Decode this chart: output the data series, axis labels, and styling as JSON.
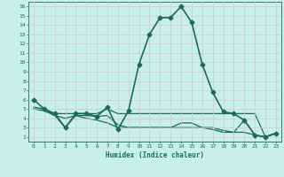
{
  "xlabel": "Humidex (Indice chaleur)",
  "bg_color": "#c8f0e8",
  "grid_color": "#d4c8c8",
  "line_color": "#1a6b5a",
  "xlim": [
    -0.5,
    23.5
  ],
  "ylim": [
    1.5,
    16.5
  ],
  "yticks": [
    2,
    3,
    4,
    5,
    6,
    7,
    8,
    9,
    10,
    11,
    12,
    13,
    14,
    15,
    16
  ],
  "xticks": [
    0,
    1,
    2,
    3,
    4,
    5,
    6,
    7,
    8,
    9,
    10,
    11,
    12,
    13,
    14,
    15,
    16,
    17,
    18,
    19,
    20,
    21,
    22,
    23
  ],
  "series": [
    {
      "x": [
        0,
        1,
        2,
        3,
        4,
        5,
        6,
        7,
        8,
        9,
        10,
        11,
        12,
        13,
        14,
        15,
        16,
        17,
        18,
        19,
        20,
        21,
        22,
        23
      ],
      "y": [
        6.0,
        5.0,
        4.5,
        3.0,
        4.5,
        4.5,
        4.2,
        5.2,
        2.8,
        4.8,
        9.8,
        13.0,
        14.8,
        14.8,
        16.0,
        14.3,
        9.8,
        6.8,
        4.7,
        4.5,
        3.8,
        2.2,
        2.0,
        2.4
      ],
      "marker": "D",
      "marker_size": 2.5,
      "linewidth": 1.2
    },
    {
      "x": [
        0,
        1,
        2,
        3,
        4,
        5,
        6,
        7,
        8,
        9,
        10,
        11,
        12,
        13,
        14,
        15,
        16,
        17,
        18,
        19,
        20,
        21,
        22,
        23
      ],
      "y": [
        5.2,
        5.0,
        4.5,
        4.5,
        4.5,
        4.5,
        4.5,
        5.0,
        4.5,
        4.5,
        4.5,
        4.5,
        4.5,
        4.5,
        4.5,
        4.5,
        4.5,
        4.5,
        4.5,
        4.5,
        4.5,
        4.5,
        2.0,
        2.4
      ],
      "marker": null,
      "linewidth": 0.9
    },
    {
      "x": [
        0,
        1,
        2,
        3,
        4,
        5,
        6,
        7,
        8,
        9,
        10,
        11,
        12,
        13,
        14,
        15,
        16,
        17,
        18,
        19,
        20,
        21,
        22,
        23
      ],
      "y": [
        5.0,
        5.0,
        4.3,
        4.0,
        4.3,
        4.3,
        4.2,
        4.3,
        3.3,
        3.0,
        3.0,
        3.0,
        3.0,
        3.0,
        3.0,
        3.0,
        3.0,
        3.0,
        2.7,
        2.5,
        2.5,
        2.2,
        2.0,
        2.4
      ],
      "marker": null,
      "linewidth": 0.9
    },
    {
      "x": [
        0,
        1,
        2,
        3,
        4,
        5,
        6,
        7,
        8,
        9,
        10,
        11,
        12,
        13,
        14,
        15,
        16,
        17,
        18,
        19,
        20,
        21,
        22,
        23
      ],
      "y": [
        5.0,
        4.8,
        4.3,
        3.0,
        4.3,
        4.0,
        3.8,
        3.5,
        3.0,
        3.0,
        3.0,
        3.0,
        3.0,
        3.0,
        3.5,
        3.5,
        3.0,
        2.8,
        2.5,
        2.5,
        3.8,
        2.2,
        2.0,
        2.4
      ],
      "marker": null,
      "linewidth": 0.9
    }
  ]
}
